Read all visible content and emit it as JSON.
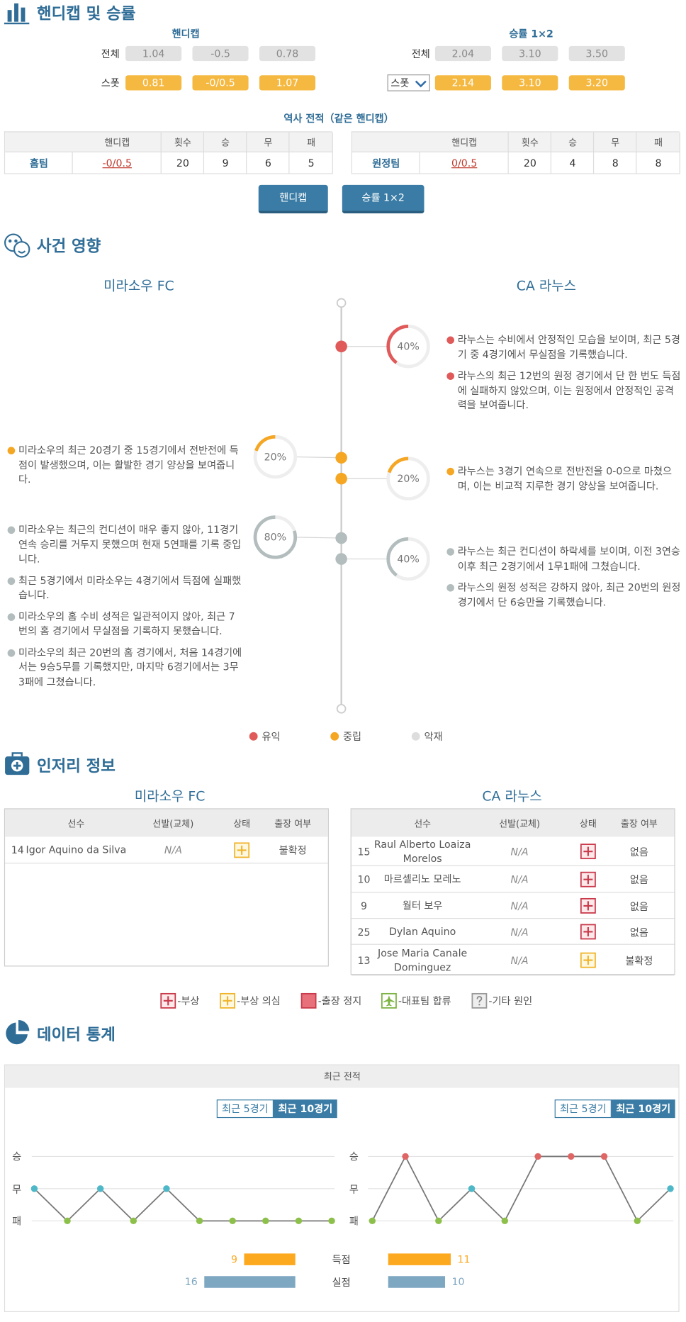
{
  "handicap": {
    "title": "핸디캡 및 승률",
    "handicap_header": "핸디캡",
    "odds_header": "승률 1×2",
    "handicap_rows": [
      {
        "label": "전체",
        "values": [
          "1.04",
          "-0.5",
          "0.78"
        ]
      },
      {
        "label": "스폿",
        "values": [
          "0.81",
          "-0/0.5",
          "1.07"
        ]
      }
    ],
    "odds_rows": [
      {
        "label": "전체",
        "values": [
          "2.04",
          "3.10",
          "3.50"
        ]
      },
      {
        "select": "스폿",
        "values": [
          "2.14",
          "3.10",
          "3.20"
        ]
      }
    ]
  },
  "history": {
    "title": "역사 전적（같은 핸디캡）",
    "headers": [
      "핸디캡",
      "횟수",
      "승",
      "무",
      "패"
    ],
    "rows": [
      {
        "team": "홈팀",
        "cells": [
          "-0/0.5",
          "20",
          "9",
          "6",
          "5"
        ]
      },
      {
        "team": "원정팀",
        "cells": [
          "0/0.5",
          "20",
          "4",
          "8",
          "8"
        ]
      }
    ]
  },
  "buttons": [
    "핸디캡",
    "승률 1×2"
  ],
  "events": {
    "title": "사건 영향",
    "teams": [
      "미라소우 FC",
      "CA 라누스"
    ],
    "levels": [
      {
        "label": "유익",
        "color": "#e05a5a"
      },
      {
        "label": "중립",
        "color": "#f5a623"
      },
      {
        "label": "악재",
        "color": "#b3bdbd"
      }
    ],
    "items": [
      {
        "side": 1,
        "level": 0,
        "value": 40,
        "label": "40%",
        "notes": [
          "라누스는 수비에서 안정적인 모습을 보이며, 최근 5경기 중 4경기에서 무실점을 기록했습니다.",
          "라누스의 최근 12번의 원정 경기에서 단 한 번도 득점에 실패하지 않았으며, 이는 원정에서 안정적인 공격력을 보여줍니다."
        ]
      },
      {
        "side": 0,
        "level": 1,
        "value": 20,
        "label": "20%",
        "notes": [
          "미라소우의 최근 20경기 중 15경기에서 전반전에 득점이 발생했으며, 이는 활발한 경기 양상을 보여줍니다."
        ]
      },
      {
        "side": 1,
        "level": 1,
        "value": 20,
        "label": "20%",
        "notes": [
          "라누스는 3경기 연속으로 전반전을 0-0으로 마쳤으며, 이는 비교적 지루한 경기 양상을 보여줍니다."
        ]
      },
      {
        "side": 0,
        "level": 2,
        "value": 80,
        "label": "80%",
        "notes": [
          "미라소우는 최근의 컨디션이 매우 좋지 않아, 11경기 연속 승리를 거두지 못했으며 현재 5연패를 기록 중입니다.",
          "최근 5경기에서 미라소우는 4경기에서 득점에 실패했습니다.",
          "미라소우의 홈 수비 성적은 일관적이지 않아, 최근 7번의 홈 경기에서 무실점을 기록하지 못했습니다.",
          "미라소우의 최근 20번의 홈 경기에서, 처음 14경기에서는 9승5무를 기록했지만, 마지막 6경기에서는 3무3패에 그쳤습니다."
        ]
      },
      {
        "side": 1,
        "level": 2,
        "value": 40,
        "label": "40%",
        "notes": [
          "라누스는 최근 컨디션이 하락세를 보이며, 이전 3연승 이후 최근 2경기에서 1무1패에 그쳤습니다.",
          "라누스의 원정 성적은 강하지 않아, 최근 20번의 원정 경기에서 단 6승만을 기록했습니다."
        ]
      }
    ]
  },
  "injury": {
    "title": "인저리 정보",
    "headers": [
      "선수",
      "선발(교체)",
      "상태",
      "출장 여부"
    ],
    "teams": [
      {
        "name": "미라소우 FC",
        "players": [
          {
            "number": "14",
            "name": "Igor Aquino da Silva",
            "lineup": "N/A",
            "status": 1,
            "availability": "불확정"
          }
        ]
      },
      {
        "name": "CA 라누스",
        "players": [
          {
            "number": "15",
            "name": "Raul Alberto Loaiza Morelos",
            "lineup": "N/A",
            "status": 0,
            "availability": "없음"
          },
          {
            "number": "10",
            "name": "마르셀리노 모레노",
            "lineup": "N/A",
            "status": 0,
            "availability": "없음"
          },
          {
            "number": "9",
            "name": "월터 보우",
            "lineup": "N/A",
            "status": 0,
            "availability": "없음"
          },
          {
            "number": "25",
            "name": "Dylan Aquino",
            "lineup": "N/A",
            "status": 0,
            "availability": "없음"
          },
          {
            "number": "13",
            "name": "Jose Maria Canale Dominguez",
            "lineup": "N/A",
            "status": 1,
            "availability": "불확정"
          }
        ]
      }
    ],
    "legend": [
      "-부상",
      "-부상 의심",
      "-출장 정지",
      "-대표팀 합류",
      "-기타 원인"
    ]
  },
  "stats": {
    "title": "데이터 통계",
    "panel_title": "최근 전적",
    "tabs": [
      "최근 5경기",
      "최근 10경기"
    ]
  },
  "chart_data": [
    {
      "type": "line",
      "ylim": [
        -1,
        1
      ],
      "yticks": [
        {
          "value": 1,
          "label": "승"
        },
        {
          "value": 0,
          "label": "무"
        },
        {
          "value": -1,
          "label": "패"
        }
      ],
      "level_colors": [
        "#e06666",
        "#4fb8c8",
        "#8dc04a"
      ],
      "grid": true,
      "series": [
        {
          "color": "#777777",
          "values": [
            0,
            -1,
            0,
            -1,
            0,
            -1,
            -1,
            -1,
            -1,
            -1
          ]
        }
      ]
    },
    {
      "type": "line",
      "ylim": [
        -1,
        1
      ],
      "yticks": [
        {
          "value": 1,
          "label": "승"
        },
        {
          "value": 0,
          "label": "무"
        },
        {
          "value": -1,
          "label": "패"
        }
      ],
      "level_colors": [
        "#e06666",
        "#4fb8c8",
        "#8dc04a"
      ],
      "grid": true,
      "series": [
        {
          "color": "#777777",
          "values": [
            -1,
            1,
            -1,
            0,
            -1,
            1,
            1,
            1,
            -1,
            0
          ]
        }
      ]
    },
    {
      "type": "bar",
      "categories": [
        "득점",
        "실점"
      ],
      "colors": [
        "#fca91f",
        "#7ea7c1"
      ],
      "series": [
        {
          "values": [
            9,
            16
          ]
        },
        {
          "values": [
            11,
            10
          ]
        }
      ]
    }
  ]
}
